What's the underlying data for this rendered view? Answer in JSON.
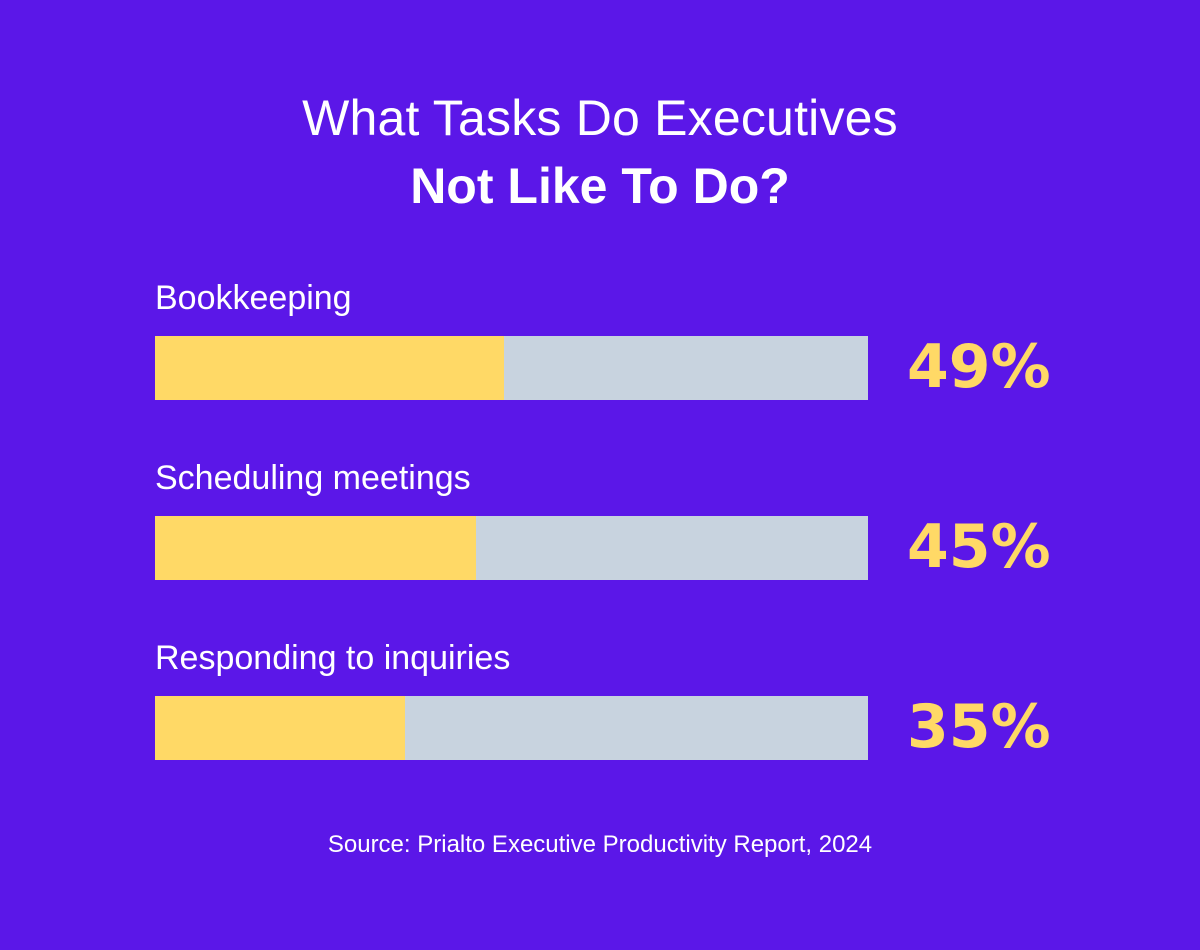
{
  "chart_data": {
    "type": "bar",
    "orientation": "horizontal",
    "title": "What Tasks Do Executives",
    "subtitle": "Not Like To Do?",
    "categories": [
      "Bookkeeping",
      "Scheduling meetings",
      "Responding to inquiries"
    ],
    "values": [
      49,
      45,
      35
    ],
    "value_labels": [
      "49%",
      "45%",
      "35%"
    ],
    "xlim": [
      0,
      100
    ],
    "grid": false,
    "source": "Source: Prialto Executive Productivity Report, 2024",
    "colors": {
      "background": "#5b17e8",
      "fill": "#ffd966",
      "track": "#c8d3df",
      "text": "#ffffff",
      "value_text": "#ffd966"
    }
  }
}
